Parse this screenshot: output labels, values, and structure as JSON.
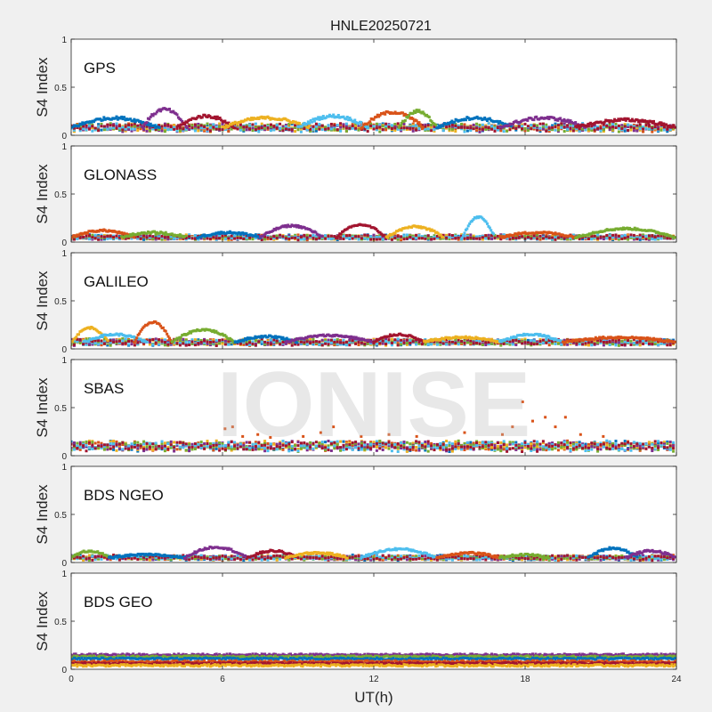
{
  "figure": {
    "title": "HNLE20250721",
    "watermark": "IONISE",
    "xlabel": "UT(h)",
    "ylabel": "S4 Index",
    "xticks": [
      "0",
      "6",
      "12",
      "18",
      "24"
    ],
    "yticks": [
      "0",
      "0.5",
      "1"
    ]
  },
  "colors": {
    "background": "#f0f0f0",
    "axes_face": "#ffffff",
    "axes_edge": "#262626",
    "series": [
      "#0072BD",
      "#D95319",
      "#EDB120",
      "#7E2F8E",
      "#77AC30",
      "#4DBEEE",
      "#A2142F"
    ]
  },
  "chart_data": [
    {
      "type": "scatter",
      "panel": "GPS",
      "xlim": [
        0,
        24
      ],
      "ylim": [
        0,
        1
      ],
      "baseline": 0.08,
      "noise": 0.03,
      "arcs": [
        {
          "x0": 0.0,
          "x1": 3.5,
          "peak": 0.18
        },
        {
          "x0": 2.8,
          "x1": 4.6,
          "peak": 0.27
        },
        {
          "x0": 4.2,
          "x1": 6.5,
          "peak": 0.2
        },
        {
          "x0": 6.0,
          "x1": 9.5,
          "peak": 0.18
        },
        {
          "x0": 9.0,
          "x1": 11.8,
          "peak": 0.2
        },
        {
          "x0": 11.5,
          "x1": 14.0,
          "peak": 0.24
        },
        {
          "x0": 13.0,
          "x1": 14.5,
          "peak": 0.25
        },
        {
          "x0": 14.5,
          "x1": 17.5,
          "peak": 0.18
        },
        {
          "x0": 17.0,
          "x1": 20.5,
          "peak": 0.18
        },
        {
          "x0": 20.0,
          "x1": 24.0,
          "peak": 0.16
        }
      ],
      "spikes": []
    },
    {
      "type": "scatter",
      "panel": "GLONASS",
      "xlim": [
        0,
        24
      ],
      "ylim": [
        0,
        1
      ],
      "baseline": 0.05,
      "noise": 0.02,
      "arcs": [
        {
          "x0": 0.0,
          "x1": 2.5,
          "peak": 0.12
        },
        {
          "x0": 2.0,
          "x1": 4.5,
          "peak": 0.1
        },
        {
          "x0": 5.0,
          "x1": 7.5,
          "peak": 0.1
        },
        {
          "x0": 7.5,
          "x1": 10.0,
          "peak": 0.17
        },
        {
          "x0": 10.5,
          "x1": 12.5,
          "peak": 0.18
        },
        {
          "x0": 12.5,
          "x1": 14.8,
          "peak": 0.16
        },
        {
          "x0": 15.5,
          "x1": 16.8,
          "peak": 0.26
        },
        {
          "x0": 17.0,
          "x1": 20.0,
          "peak": 0.1
        },
        {
          "x0": 20.0,
          "x1": 24.0,
          "peak": 0.14
        }
      ],
      "spikes": []
    },
    {
      "type": "scatter",
      "panel": "GALILEO",
      "xlim": [
        0,
        24
      ],
      "ylim": [
        0,
        1
      ],
      "baseline": 0.07,
      "noise": 0.02,
      "arcs": [
        {
          "x0": 0.0,
          "x1": 1.5,
          "peak": 0.22
        },
        {
          "x0": 0.5,
          "x1": 3.0,
          "peak": 0.15
        },
        {
          "x0": 2.5,
          "x1": 4.0,
          "peak": 0.28
        },
        {
          "x0": 4.0,
          "x1": 6.5,
          "peak": 0.2
        },
        {
          "x0": 6.5,
          "x1": 9.0,
          "peak": 0.13
        },
        {
          "x0": 8.5,
          "x1": 12.0,
          "peak": 0.14
        },
        {
          "x0": 12.0,
          "x1": 14.0,
          "peak": 0.15
        },
        {
          "x0": 14.0,
          "x1": 17.0,
          "peak": 0.12
        },
        {
          "x0": 17.0,
          "x1": 19.5,
          "peak": 0.15
        },
        {
          "x0": 19.5,
          "x1": 24.0,
          "peak": 0.12
        }
      ],
      "spikes": []
    },
    {
      "type": "scatter",
      "panel": "SBAS",
      "xlim": [
        0,
        24
      ],
      "ylim": [
        0,
        1
      ],
      "baseline": 0.1,
      "noise": 0.04,
      "arcs": [],
      "spikes": [
        {
          "x": 6.1,
          "y": 0.28
        },
        {
          "x": 6.4,
          "y": 0.3
        },
        {
          "x": 6.8,
          "y": 0.2
        },
        {
          "x": 7.4,
          "y": 0.22
        },
        {
          "x": 7.9,
          "y": 0.19
        },
        {
          "x": 9.2,
          "y": 0.2
        },
        {
          "x": 9.9,
          "y": 0.24
        },
        {
          "x": 10.4,
          "y": 0.3
        },
        {
          "x": 11.5,
          "y": 0.2
        },
        {
          "x": 12.6,
          "y": 0.22
        },
        {
          "x": 13.7,
          "y": 0.2
        },
        {
          "x": 15.6,
          "y": 0.24
        },
        {
          "x": 17.1,
          "y": 0.22
        },
        {
          "x": 17.5,
          "y": 0.3
        },
        {
          "x": 17.9,
          "y": 0.56
        },
        {
          "x": 18.3,
          "y": 0.36
        },
        {
          "x": 18.8,
          "y": 0.4
        },
        {
          "x": 19.2,
          "y": 0.3
        },
        {
          "x": 19.6,
          "y": 0.4
        },
        {
          "x": 20.2,
          "y": 0.22
        },
        {
          "x": 21.1,
          "y": 0.2
        }
      ]
    },
    {
      "type": "scatter",
      "panel": "BDS NGEO",
      "xlim": [
        0,
        24
      ],
      "ylim": [
        0,
        1
      ],
      "baseline": 0.05,
      "noise": 0.02,
      "arcs": [
        {
          "x0": 0.0,
          "x1": 1.5,
          "peak": 0.12
        },
        {
          "x0": 1.5,
          "x1": 4.5,
          "peak": 0.08
        },
        {
          "x0": 4.5,
          "x1": 7.0,
          "peak": 0.16
        },
        {
          "x0": 7.0,
          "x1": 9.0,
          "peak": 0.12
        },
        {
          "x0": 8.5,
          "x1": 11.0,
          "peak": 0.1
        },
        {
          "x0": 11.5,
          "x1": 14.5,
          "peak": 0.14
        },
        {
          "x0": 14.5,
          "x1": 17.0,
          "peak": 0.1
        },
        {
          "x0": 17.0,
          "x1": 19.0,
          "peak": 0.08
        },
        {
          "x0": 20.5,
          "x1": 22.5,
          "peak": 0.15
        },
        {
          "x0": 22.0,
          "x1": 24.0,
          "peak": 0.12
        }
      ],
      "spikes": []
    },
    {
      "type": "scatter",
      "panel": "BDS GEO",
      "xlim": [
        0,
        24
      ],
      "ylim": [
        0,
        1
      ],
      "baseline": 0.0,
      "noise": 0.01,
      "arcs": [],
      "bands": [
        {
          "y": 0.15,
          "color": 3
        },
        {
          "y": 0.13,
          "color": 4
        },
        {
          "y": 0.11,
          "color": 0
        },
        {
          "y": 0.08,
          "color": 1
        },
        {
          "y": 0.06,
          "color": 6
        },
        {
          "y": 0.04,
          "color": 2
        }
      ],
      "spikes": []
    }
  ]
}
